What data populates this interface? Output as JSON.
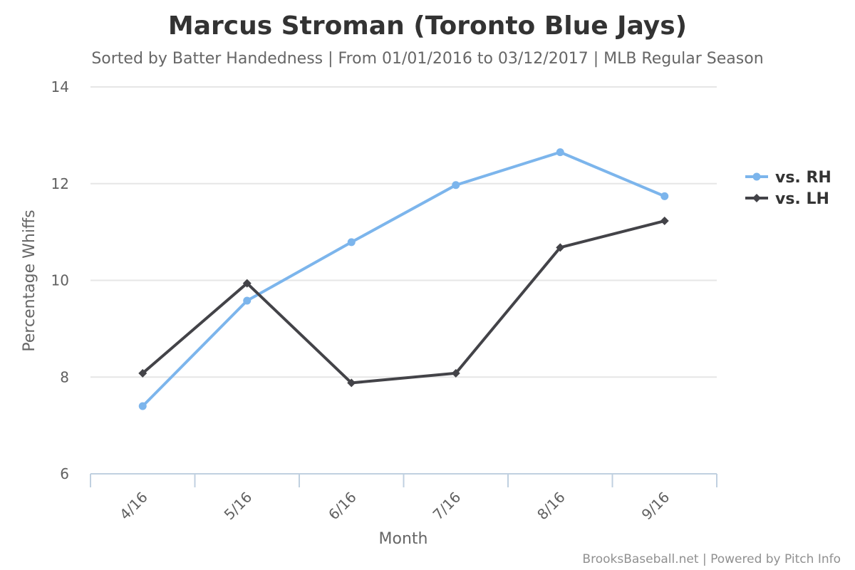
{
  "chart_data": {
    "type": "line",
    "title": "Marcus Stroman (Toronto Blue Jays)",
    "subtitle": "Sorted by Batter Handedness | From 01/01/2016 to 03/12/2017 | MLB Regular Season",
    "xlabel": "Month",
    "ylabel": "Percentage Whiffs",
    "categories": [
      "4/16",
      "5/16",
      "6/16",
      "7/16",
      "8/16",
      "9/16"
    ],
    "ylim": [
      6,
      14
    ],
    "yticks": [
      6,
      8,
      10,
      12,
      14
    ],
    "grid": true,
    "legend_position": "right",
    "series": [
      {
        "name": "vs. RH",
        "color": "#7cb5ec",
        "marker": "circle",
        "values": [
          7.4,
          9.58,
          10.79,
          11.97,
          12.65,
          11.74
        ]
      },
      {
        "name": "vs. LH",
        "color": "#434348",
        "marker": "diamond",
        "values": [
          8.08,
          9.94,
          7.88,
          8.08,
          10.68,
          11.23
        ]
      }
    ]
  },
  "credits": "BrooksBaseball.net | Powered by Pitch Info"
}
